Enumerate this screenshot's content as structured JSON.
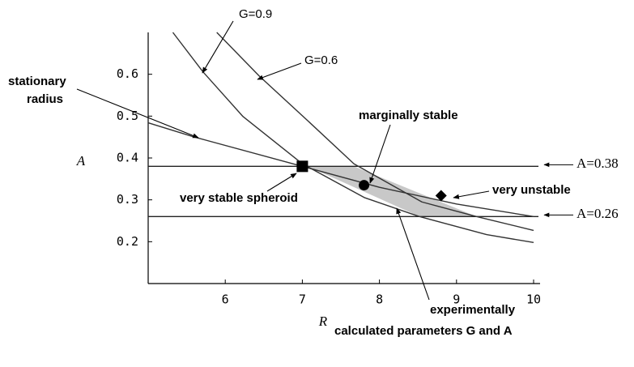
{
  "chart_data": {
    "type": "line",
    "xlabel": "R",
    "ylabel": "A",
    "xlim": [
      5,
      10
    ],
    "ylim": [
      0.1,
      0.7
    ],
    "xticks": [
      6,
      7,
      8,
      9,
      10
    ],
    "yticks": [
      0.2,
      0.3,
      0.4,
      0.5,
      0.6
    ],
    "series": [
      {
        "name": "G=0.9",
        "color": "#333333",
        "x": [
          5.32,
          5.71,
          6.23,
          7.0,
          7.81,
          8.52,
          9.39,
          10
        ],
        "values": [
          0.7,
          0.606,
          0.499,
          0.386,
          0.305,
          0.26,
          0.217,
          0.198
        ]
      },
      {
        "name": "G=0.6",
        "color": "#333333",
        "x": [
          5.89,
          6.44,
          7.07,
          7.67,
          8.55,
          9.26,
          10
        ],
        "values": [
          0.7,
          0.596,
          0.489,
          0.386,
          0.295,
          0.26,
          0.227
        ]
      },
      {
        "name": "stationary radius",
        "color": "#333333",
        "x": [
          5,
          5.6,
          7,
          8,
          9,
          10
        ],
        "values": [
          0.484,
          0.45,
          0.38,
          0.33,
          0.29,
          0.26
        ]
      }
    ],
    "hlines": [
      {
        "value": 0.38,
        "label": "A=0.38"
      },
      {
        "value": 0.26,
        "label": "A=0.26"
      }
    ],
    "region": {
      "color": "#c8c8c8",
      "x": [
        7.07,
        7.67,
        9.26,
        8.52
      ],
      "values": [
        0.38,
        0.38,
        0.26,
        0.26
      ]
    },
    "points": [
      {
        "shape": "square",
        "x": 7.0,
        "value": 0.38
      },
      {
        "shape": "circle",
        "x": 7.8,
        "value": 0.335
      },
      {
        "shape": "diamond",
        "x": 8.8,
        "value": 0.31
      }
    ],
    "annotations": [
      {
        "lines": [
          "G=0.9"
        ]
      },
      {
        "lines": [
          "G=0.6"
        ]
      },
      {
        "lines": [
          "stationary",
          "radius"
        ]
      },
      {
        "lines": [
          "marginally stable"
        ]
      },
      {
        "lines": [
          "very stable spheroid"
        ]
      },
      {
        "lines": [
          "very unstable"
        ]
      },
      {
        "lines": [
          "experimentally",
          "calculated  parameters G and A"
        ]
      }
    ]
  }
}
